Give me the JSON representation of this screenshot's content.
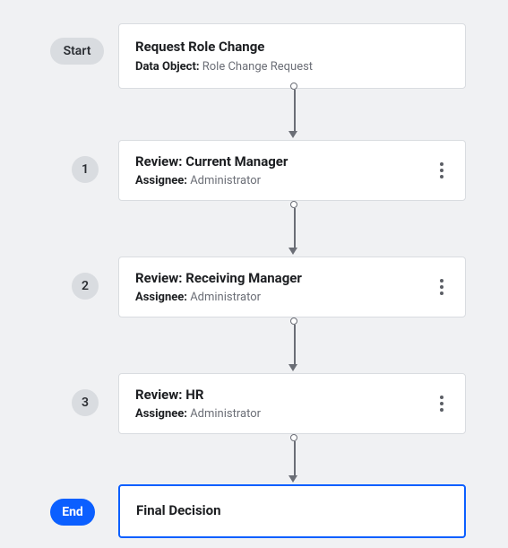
{
  "workflow": {
    "type": "flowchart",
    "orientation": "vertical",
    "background_color": "#f0f1f3",
    "card_bg": "#ffffff",
    "card_border": "#d9dce0",
    "badge_bg": "#d9dce0",
    "badge_fg": "#2b2e33",
    "accent": "#0b5fff",
    "connector_color": "#6b6e76",
    "title_fontsize_pt": 11,
    "sub_fontsize_pt": 10,
    "start": {
      "badge": "Start",
      "title": "Request Role Change",
      "meta_label": "Data Object:",
      "meta_value": "Role Change Request"
    },
    "steps": [
      {
        "index": "1",
        "title": "Review: Current Manager",
        "meta_label": "Assignee:",
        "meta_value": "Administrator",
        "has_menu": true
      },
      {
        "index": "2",
        "title": "Review: Receiving Manager",
        "meta_label": "Assignee:",
        "meta_value": "Administrator",
        "has_menu": true
      },
      {
        "index": "3",
        "title": "Review: HR",
        "meta_label": "Assignee:",
        "meta_value": "Administrator",
        "has_menu": true
      }
    ],
    "end": {
      "badge": "End",
      "title": "Final Decision"
    }
  }
}
